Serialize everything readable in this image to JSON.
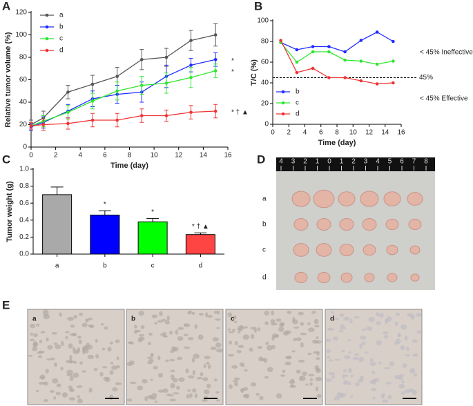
{
  "chart_data": [
    {
      "type": "line",
      "panel_label": "A",
      "x_label": "Time (day)",
      "y_label": "Relative tumor volume (%)",
      "xlim": [
        0,
        16
      ],
      "xticks": [
        0,
        2,
        4,
        6,
        8,
        10,
        12,
        14,
        16
      ],
      "ylim": [
        0,
        120
      ],
      "yticks": [
        0,
        20,
        40,
        60,
        80,
        100,
        120
      ],
      "x": [
        0,
        1,
        3,
        5,
        7,
        9,
        11,
        13,
        15
      ],
      "legend": "upper left",
      "series": [
        {
          "name": "a",
          "color": "#555555",
          "values": [
            20,
            26,
            49,
            56,
            63,
            78,
            80,
            95,
            100
          ],
          "errors": [
            4,
            6,
            6,
            8,
            8,
            9,
            8,
            9,
            10
          ]
        },
        {
          "name": "b",
          "color": "#1f2bff",
          "values": [
            18,
            22,
            32,
            43,
            47,
            49,
            63,
            73,
            78
          ],
          "errors": [
            3,
            5,
            6,
            7,
            8,
            9,
            10,
            6,
            6
          ]
        },
        {
          "name": "c",
          "color": "#2ee62e",
          "values": [
            19,
            23,
            31,
            41,
            50,
            55,
            57,
            62,
            68
          ],
          "errors": [
            3,
            5,
            6,
            7,
            8,
            8,
            9,
            9,
            6
          ]
        },
        {
          "name": "d",
          "color": "#ee3333",
          "values": [
            19,
            20,
            21,
            24,
            24,
            28,
            28,
            31,
            32
          ],
          "errors": [
            3,
            5,
            5,
            6,
            6,
            6,
            5,
            6,
            6
          ]
        }
      ],
      "annotations": [
        "*",
        "*",
        "* † ▲"
      ]
    },
    {
      "type": "line",
      "panel_label": "B",
      "x_label": "Time (day)",
      "y_label": "T/C (%)",
      "xlim": [
        0,
        16
      ],
      "xticks": [
        0,
        2,
        4,
        6,
        8,
        10,
        12,
        14,
        16
      ],
      "ylim": [
        0,
        100
      ],
      "yticks": [
        0,
        20,
        40,
        60,
        80,
        100
      ],
      "x": [
        1,
        3,
        5,
        7,
        9,
        11,
        13,
        15
      ],
      "legend": "lower left",
      "series": [
        {
          "name": "b",
          "color": "#1f2bff",
          "values": [
            79,
            72,
            75,
            75,
            70,
            81,
            89,
            80
          ]
        },
        {
          "name": "c",
          "color": "#2ee62e",
          "values": [
            79,
            60,
            70,
            70,
            62,
            61,
            58,
            61
          ]
        },
        {
          "name": "d",
          "color": "#ee3333",
          "values": [
            81,
            50,
            54,
            45,
            45,
            42,
            39,
            40
          ]
        }
      ],
      "reference_line": {
        "value": 45,
        "label": "45%"
      },
      "annotations": [
        "< 45%  Ineffective",
        "< 45%  Effective"
      ]
    },
    {
      "type": "bar",
      "panel_label": "C",
      "y_label": "Tumor weight (g)",
      "categories": [
        "a",
        "b",
        "c",
        "d"
      ],
      "values": [
        0.7,
        0.46,
        0.38,
        0.23
      ],
      "errors": [
        0.09,
        0.05,
        0.04,
        0.02
      ],
      "colors": [
        "#a9a9a9",
        "#0000ff",
        "#00ff00",
        "#ff4444"
      ],
      "ylim": [
        0,
        1
      ],
      "yticks": [
        {
          "value": 0,
          "label": "0.0"
        },
        0.2,
        0.4,
        0.6,
        0.8,
        {
          "value": 1,
          "label": "1.0"
        }
      ],
      "annotations": [
        "*",
        "*",
        "* † ▲"
      ]
    }
  ],
  "photo_panels": [
    {
      "panel_label": "D",
      "row_labels": [
        "a",
        "b",
        "c",
        "d"
      ],
      "ruler_labels": [
        "4",
        "3",
        "2",
        "1",
        "0",
        "1",
        "2",
        "3",
        "4",
        "5",
        "6",
        "7",
        "8"
      ]
    },
    {
      "panel_label": "E",
      "image_labels": [
        "a",
        "b",
        "c",
        "d"
      ]
    }
  ]
}
